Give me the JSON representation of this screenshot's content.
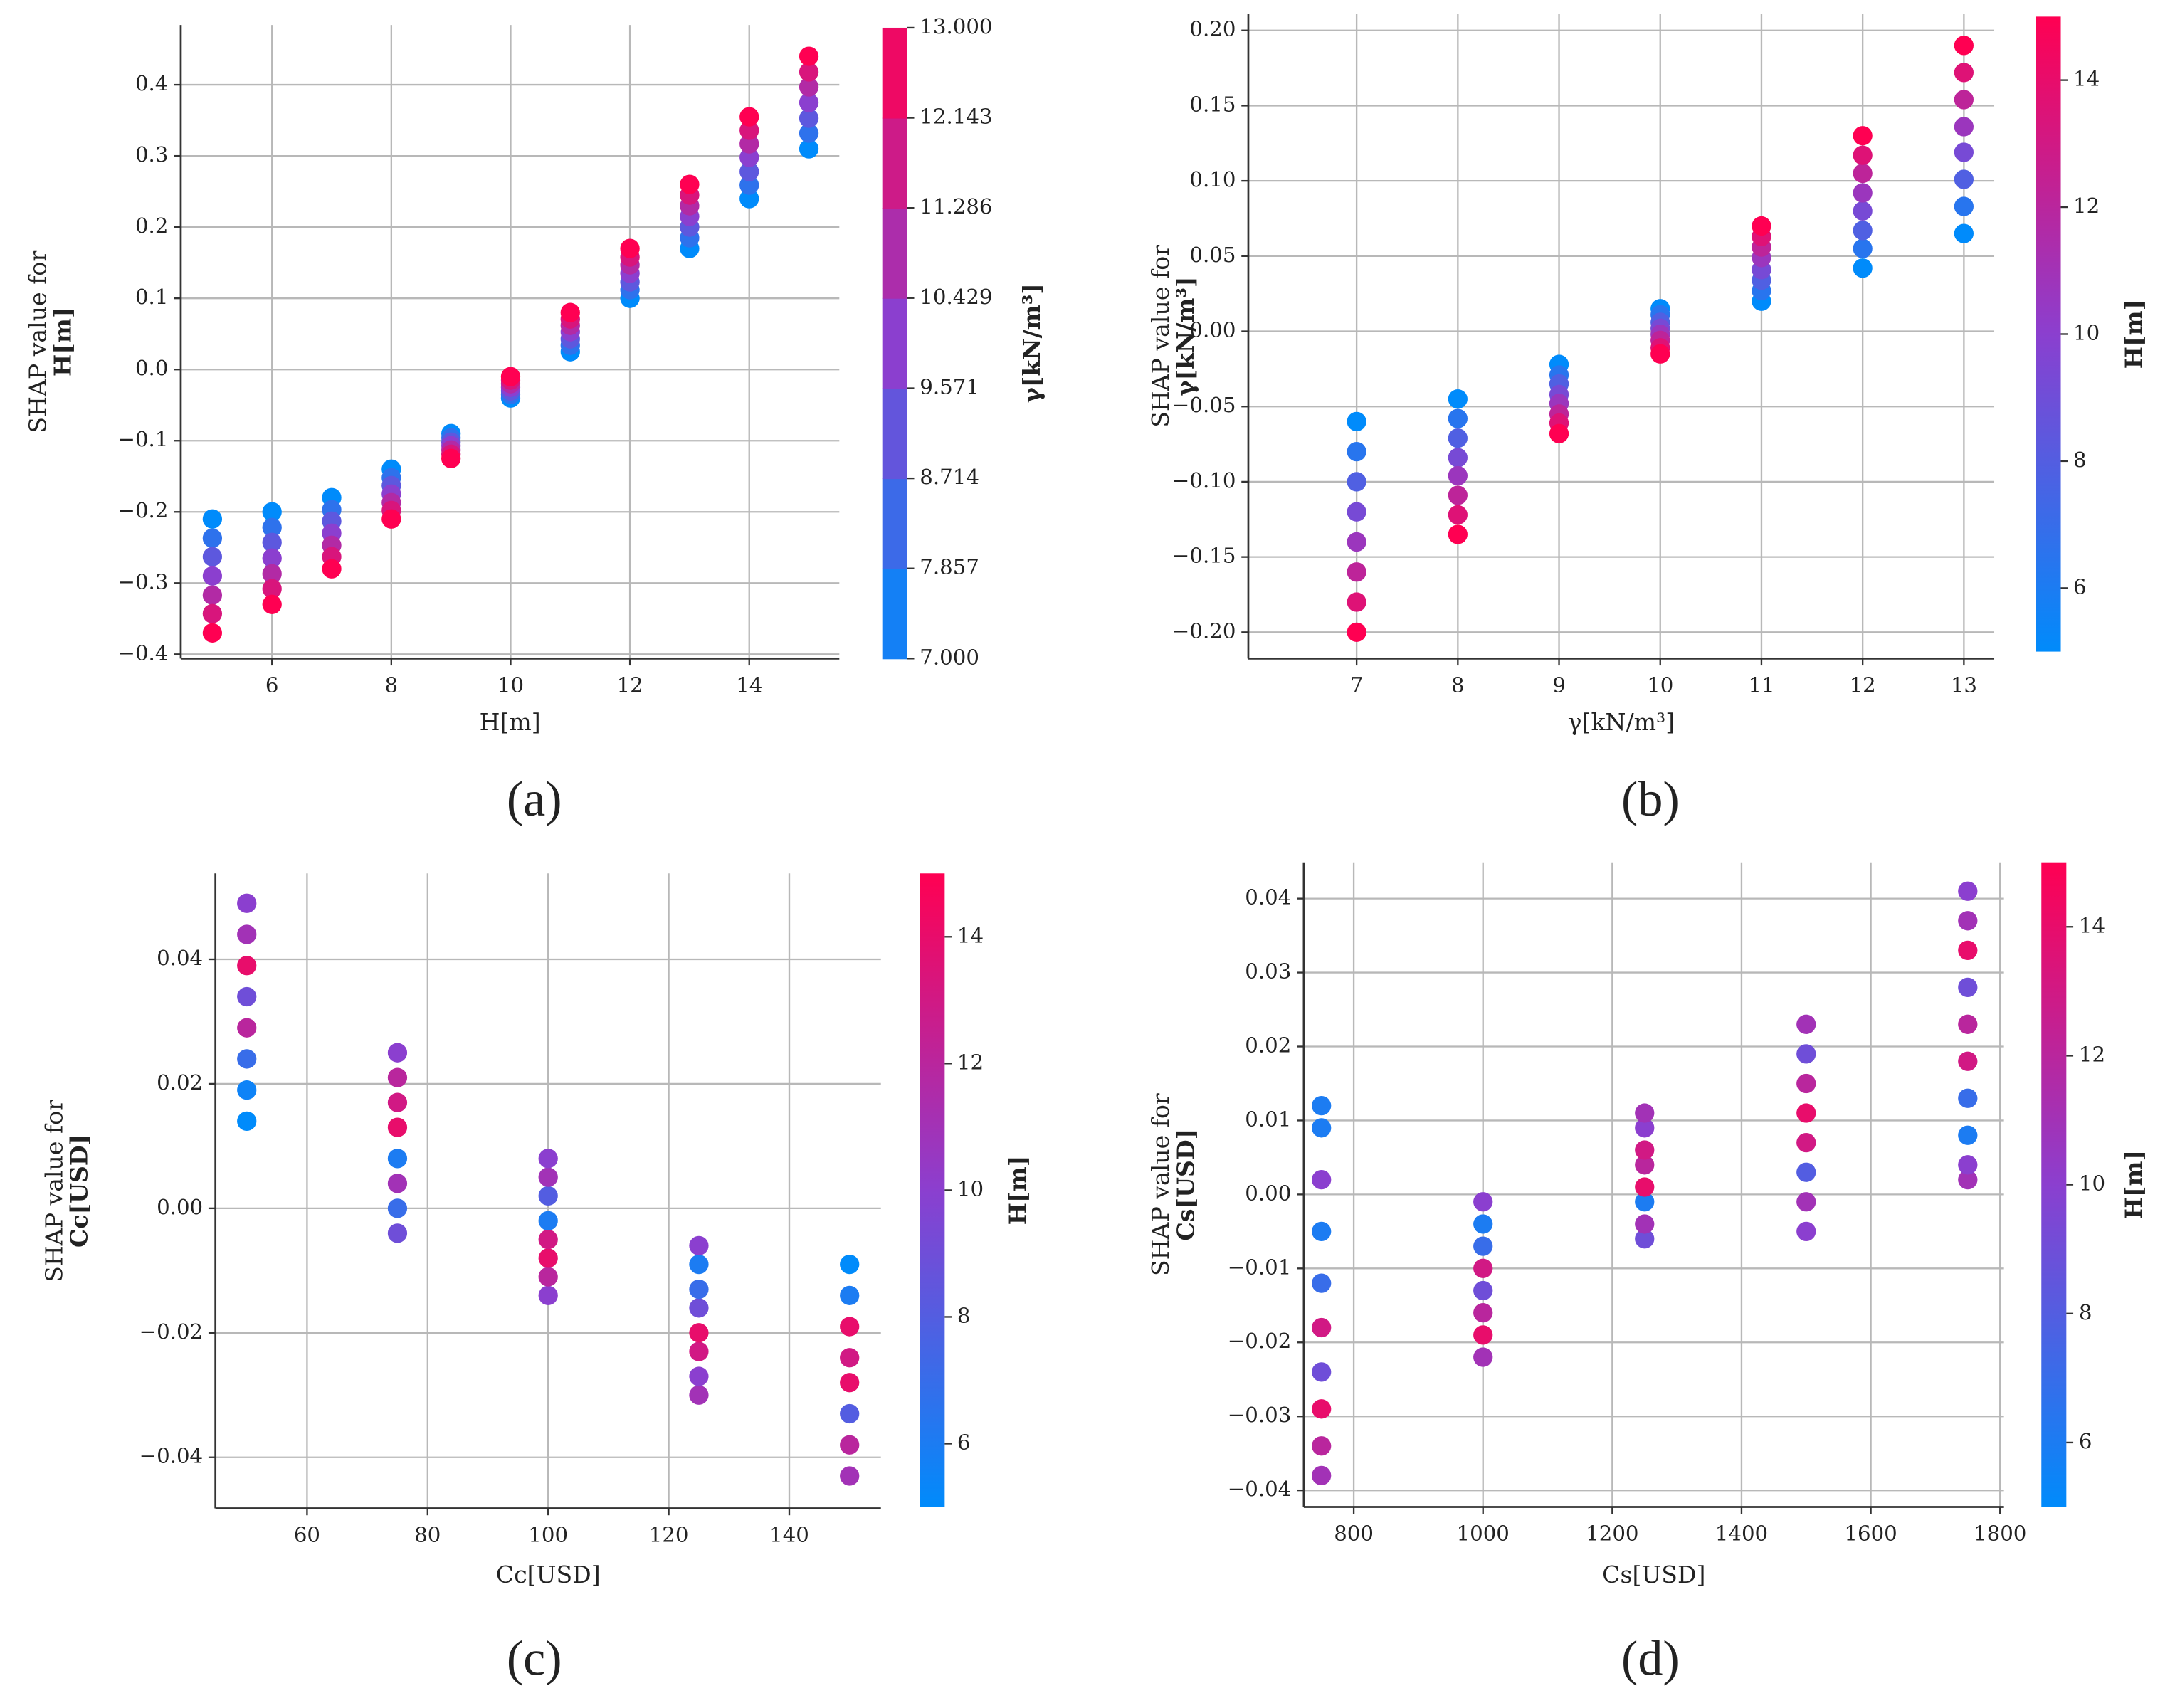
{
  "chart_data": [
    {
      "type": "scatter",
      "panel_label": "(a)",
      "x_label": "H[m]",
      "y_label": [
        "SHAP value for",
        "H[m]"
      ],
      "colorbar_label": "γ[kN/m³]",
      "xlim": [
        4.47,
        15.51
      ],
      "xticks": [
        6,
        8,
        10,
        12,
        14
      ],
      "ylim": [
        -0.406,
        0.484
      ],
      "yticks": [
        {
          "value": -0.4,
          "label": "−0.4"
        },
        {
          "value": -0.3,
          "label": "−0.3"
        },
        {
          "value": -0.2,
          "label": "−0.2"
        },
        {
          "value": -0.1,
          "label": "−0.1"
        },
        {
          "value": 0,
          "label": "0.0"
        },
        0.1,
        0.2,
        0.3,
        0.4
      ],
      "clim": [
        7,
        13
      ],
      "cticks": [
        {
          "value": 7,
          "label": "7.000"
        },
        7.857,
        8.714,
        9.571,
        10.429,
        11.286,
        12.143,
        {
          "value": 13,
          "label": "13.000"
        }
      ],
      "colorbar_discrete": true,
      "colormap": [
        "#008bfb",
        "#8b3fcf",
        "#ff0052"
      ],
      "grid": true,
      "x": [
        5,
        5,
        5,
        5,
        5,
        5,
        5,
        6,
        6,
        6,
        6,
        6,
        6,
        6,
        7,
        7,
        7,
        7,
        7,
        7,
        7,
        8,
        8,
        8,
        8,
        8,
        8,
        8,
        9,
        9,
        9,
        9,
        9,
        9,
        9,
        10,
        10,
        10,
        10,
        10,
        10,
        10,
        11,
        11,
        11,
        11,
        11,
        11,
        11,
        12,
        12,
        12,
        12,
        12,
        12,
        12,
        13,
        13,
        13,
        13,
        13,
        13,
        13,
        14,
        14,
        14,
        14,
        14,
        14,
        14,
        15,
        15,
        15,
        15,
        15,
        15,
        15
      ],
      "y": [
        -0.21,
        -0.237,
        -0.263,
        -0.29,
        -0.317,
        -0.343,
        -0.37,
        -0.2,
        -0.222,
        -0.243,
        -0.265,
        -0.287,
        -0.308,
        -0.33,
        -0.18,
        -0.197,
        -0.213,
        -0.23,
        -0.247,
        -0.263,
        -0.28,
        -0.14,
        -0.152,
        -0.163,
        -0.175,
        -0.187,
        -0.198,
        -0.21,
        -0.09,
        -0.096,
        -0.102,
        -0.107,
        -0.113,
        -0.119,
        -0.125,
        -0.04,
        -0.035,
        -0.03,
        -0.025,
        -0.02,
        -0.015,
        -0.01,
        0.025,
        0.034,
        0.043,
        0.053,
        0.062,
        0.071,
        0.08,
        0.1,
        0.112,
        0.123,
        0.135,
        0.147,
        0.158,
        0.17,
        0.17,
        0.185,
        0.2,
        0.215,
        0.23,
        0.245,
        0.26,
        0.24,
        0.259,
        0.278,
        0.298,
        0.317,
        0.336,
        0.355,
        0.31,
        0.332,
        0.353,
        0.375,
        0.397,
        0.418,
        0.44
      ],
      "c": [
        7,
        8,
        9,
        10,
        11,
        12,
        13,
        7,
        8,
        9,
        10,
        11,
        12,
        13,
        7,
        8,
        9,
        10,
        11,
        12,
        13,
        7,
        8,
        9,
        10,
        11,
        12,
        13,
        7,
        8,
        9,
        10,
        11,
        12,
        13,
        7,
        8,
        9,
        10,
        11,
        12,
        13,
        7,
        8,
        9,
        10,
        11,
        12,
        13,
        7,
        8,
        9,
        10,
        11,
        12,
        13,
        7,
        8,
        9,
        10,
        11,
        12,
        13,
        7,
        8,
        9,
        10,
        11,
        12,
        13,
        7,
        8,
        9,
        10,
        11,
        12,
        13
      ]
    },
    {
      "type": "scatter",
      "panel_label": "(b)",
      "x_label": "γ[kN/m³]",
      "y_label": [
        "SHAP value for",
        "γ[kN/m³]"
      ],
      "colorbar_label": "H[m]",
      "xlim": [
        5.93,
        13.3
      ],
      "xticks": [
        7,
        8,
        9,
        10,
        11,
        12,
        13
      ],
      "ylim": [
        -0.2175,
        0.211
      ],
      "yticks": [
        {
          "value": -0.2,
          "label": "−0.20"
        },
        {
          "value": -0.15,
          "label": "−0.15"
        },
        {
          "value": -0.1,
          "label": "−0.10"
        },
        {
          "value": -0.05,
          "label": "−0.05"
        },
        {
          "value": 0,
          "label": "0.00"
        },
        0.05,
        {
          "value": 0.1,
          "label": "0.10"
        },
        0.15,
        {
          "value": 0.2,
          "label": "0.20"
        }
      ],
      "clim": [
        5,
        15
      ],
      "cticks": [
        6,
        8,
        10,
        12,
        14
      ],
      "colorbar_discrete": false,
      "colormap": [
        "#008bfb",
        "#8b3fcf",
        "#ff0052"
      ],
      "grid": true,
      "x": [
        7,
        7,
        7,
        7,
        7,
        7,
        7,
        7,
        8,
        8,
        8,
        8,
        8,
        8,
        8,
        8,
        9,
        9,
        9,
        9,
        9,
        9,
        9,
        9,
        10,
        10,
        10,
        10,
        10,
        10,
        10,
        10,
        11,
        11,
        11,
        11,
        11,
        11,
        11,
        11,
        12,
        12,
        12,
        12,
        12,
        12,
        12,
        12,
        13,
        13,
        13,
        13,
        13,
        13,
        13,
        13
      ],
      "y": [
        -0.06,
        -0.08,
        -0.1,
        -0.12,
        -0.14,
        -0.16,
        -0.18,
        -0.2,
        -0.045,
        -0.058,
        -0.071,
        -0.084,
        -0.096,
        -0.109,
        -0.122,
        -0.135,
        -0.022,
        -0.029,
        -0.035,
        -0.042,
        -0.048,
        -0.055,
        -0.061,
        -0.068,
        0.015,
        0.011,
        0.006,
        0.002,
        -0.002,
        -0.006,
        -0.011,
        -0.015,
        0.02,
        0.027,
        0.034,
        0.041,
        0.049,
        0.056,
        0.063,
        0.07,
        0.042,
        0.055,
        0.067,
        0.08,
        0.092,
        0.105,
        0.117,
        0.13,
        0.065,
        0.083,
        0.101,
        0.119,
        0.136,
        0.154,
        0.172,
        0.19
      ],
      "c": [
        5,
        6.43,
        7.86,
        9.29,
        10.71,
        12.14,
        13.57,
        15,
        5,
        6.43,
        7.86,
        9.29,
        10.71,
        12.14,
        13.57,
        15,
        5,
        6.43,
        7.86,
        9.29,
        10.71,
        12.14,
        13.57,
        15,
        5,
        6.43,
        7.86,
        9.29,
        10.71,
        12.14,
        13.57,
        15,
        5,
        6.43,
        7.86,
        9.29,
        10.71,
        12.14,
        13.57,
        15,
        5,
        6.43,
        7.86,
        9.29,
        10.71,
        12.14,
        13.57,
        15,
        5,
        6.43,
        7.86,
        9.29,
        10.71,
        12.14,
        13.57,
        15
      ]
    },
    {
      "type": "scatter",
      "panel_label": "(c)",
      "x_label": "Cc[USD]",
      "y_label": [
        "SHAP value for",
        "Cc[USD]"
      ],
      "colorbar_label": "H[m]",
      "xlim": [
        44.8,
        155.2
      ],
      "xticks": [
        60,
        80,
        100,
        120,
        140
      ],
      "ylim": [
        -0.0482,
        0.0538
      ],
      "yticks": [
        {
          "value": -0.04,
          "label": "−0.04"
        },
        {
          "value": -0.02,
          "label": "−0.02"
        },
        {
          "value": 0,
          "label": "0.00"
        },
        0.02,
        0.04
      ],
      "clim": [
        5,
        15
      ],
      "cticks": [
        6,
        8,
        10,
        12,
        14
      ],
      "colorbar_discrete": false,
      "colormap": [
        "#008bfb",
        "#8b3fcf",
        "#ff0052"
      ],
      "grid": true,
      "x": [
        50,
        50,
        50,
        50,
        50,
        50,
        50,
        50,
        75,
        75,
        75,
        75,
        75,
        75,
        75,
        75,
        100,
        100,
        100,
        100,
        100,
        100,
        100,
        100,
        125,
        125,
        125,
        125,
        125,
        125,
        125,
        125,
        150,
        150,
        150,
        150,
        150,
        150,
        150,
        150
      ],
      "y": [
        0.014,
        0.019,
        0.024,
        0.029,
        0.034,
        0.039,
        0.044,
        0.049,
        -0.004,
        0.0,
        0.004,
        0.008,
        0.013,
        0.017,
        0.021,
        0.025,
        -0.014,
        -0.011,
        -0.008,
        -0.005,
        -0.002,
        0.002,
        0.005,
        0.008,
        -0.03,
        -0.027,
        -0.023,
        -0.02,
        -0.016,
        -0.013,
        -0.009,
        -0.006,
        -0.043,
        -0.038,
        -0.033,
        -0.028,
        -0.024,
        -0.019,
        -0.014,
        -0.009
      ],
      "c": [
        5,
        5.5,
        7,
        12,
        9,
        14,
        11,
        10,
        9,
        7,
        11,
        6,
        14,
        13,
        12,
        10,
        10,
        12,
        14,
        13,
        6,
        8,
        11,
        10,
        11,
        10,
        13,
        14,
        9,
        7,
        6,
        10,
        11,
        12,
        8,
        14,
        13,
        14,
        6,
        5
      ]
    },
    {
      "type": "scatter",
      "panel_label": "(d)",
      "x_label": "Cs[USD]",
      "y_label": [
        "SHAP value for",
        "Cs[USD]"
      ],
      "colorbar_label": "H[m]",
      "xlim": [
        722.7,
        1806
      ],
      "xticks": [
        800,
        1000,
        1200,
        1400,
        1600,
        1800
      ],
      "ylim": [
        -0.04225,
        0.0449
      ],
      "yticks": [
        {
          "value": -0.04,
          "label": "−0.04"
        },
        {
          "value": -0.03,
          "label": "−0.03"
        },
        {
          "value": -0.02,
          "label": "−0.02"
        },
        {
          "value": -0.01,
          "label": "−0.01"
        },
        {
          "value": 0,
          "label": "0.00"
        },
        0.01,
        0.02,
        0.03,
        0.04
      ],
      "clim": [
        5,
        15
      ],
      "cticks": [
        6,
        8,
        10,
        12,
        14
      ],
      "colorbar_discrete": false,
      "colormap": [
        "#008bfb",
        "#8b3fcf",
        "#ff0052"
      ],
      "grid": true,
      "x": [
        750,
        750,
        750,
        750,
        750,
        750,
        750,
        750,
        750,
        750,
        1000,
        1000,
        1000,
        1000,
        1000,
        1000,
        1000,
        1000,
        1250,
        1250,
        1250,
        1250,
        1250,
        1250,
        1250,
        1250,
        1500,
        1500,
        1500,
        1500,
        1500,
        1500,
        1500,
        1500,
        1750,
        1750,
        1750,
        1750,
        1750,
        1750,
        1750,
        1750,
        1750,
        1750
      ],
      "y": [
        0.012,
        0.009,
        0.002,
        -0.005,
        -0.012,
        -0.018,
        -0.024,
        -0.029,
        -0.034,
        -0.038,
        -0.001,
        -0.004,
        -0.007,
        -0.01,
        -0.013,
        -0.016,
        -0.019,
        -0.022,
        -0.006,
        -0.004,
        -0.001,
        0.001,
        0.004,
        0.006,
        0.009,
        0.011,
        -0.005,
        -0.001,
        0.003,
        0.007,
        0.011,
        0.015,
        0.019,
        0.023,
        0.002,
        0.004,
        0.008,
        0.013,
        0.018,
        0.023,
        0.028,
        0.033,
        0.037,
        0.041
      ],
      "c": [
        6,
        6,
        10,
        6,
        7,
        13,
        9,
        14,
        12,
        11,
        10,
        6,
        7,
        13,
        9,
        12,
        14,
        11,
        9,
        11,
        6,
        14,
        12,
        13,
        10,
        11,
        10,
        11,
        8,
        13,
        14,
        12,
        9,
        11,
        11,
        10,
        6,
        7,
        13,
        12,
        9,
        14,
        11,
        10
      ]
    }
  ]
}
